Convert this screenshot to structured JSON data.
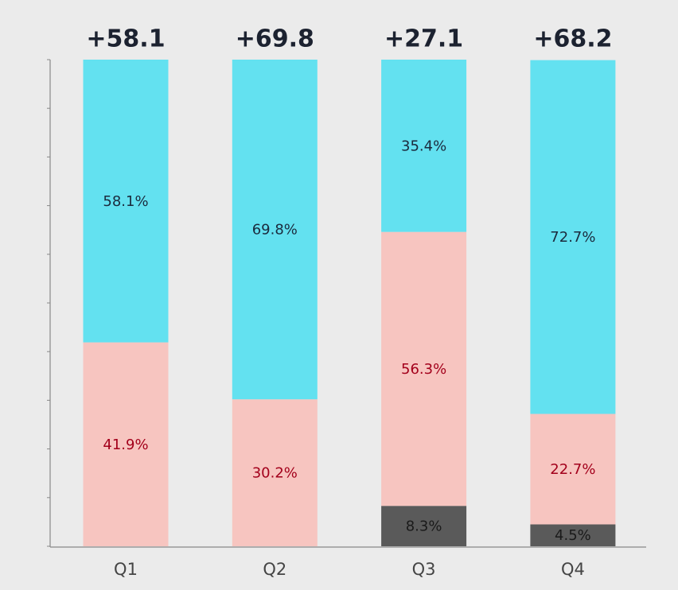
{
  "chart_data": {
    "type": "stacked_bar",
    "categories": [
      "Q1",
      "Q2",
      "Q3",
      "Q4"
    ],
    "series": [
      {
        "color": "#5a5a5a",
        "label_color": "#1a1a1a",
        "values": [
          0,
          0,
          8.3,
          4.5
        ],
        "value_labels": [
          null,
          null,
          "8.3%",
          "4.5%"
        ]
      },
      {
        "color": "#f7c5c0",
        "label_color": "#a3001b",
        "values": [
          41.9,
          30.2,
          56.3,
          22.7
        ],
        "value_labels": [
          "41.9%",
          "30.2%",
          "56.3%",
          "22.7%"
        ]
      },
      {
        "color": "#63e1f0",
        "label_color": "#1b2a3d",
        "values": [
          58.1,
          69.8,
          35.4,
          72.7
        ],
        "value_labels": [
          "58.1%",
          "69.8%",
          "35.4%",
          "72.7%"
        ]
      }
    ],
    "net": {
      "values": [
        58.1,
        69.8,
        27.1,
        68.2
      ],
      "value_labels": [
        "+58.1",
        "+69.8",
        "+27.1",
        "+68.2"
      ]
    },
    "ylim": [
      0,
      100
    ],
    "yticks": [
      0,
      10,
      20,
      30,
      40,
      50,
      60,
      70,
      80,
      90,
      100
    ]
  }
}
